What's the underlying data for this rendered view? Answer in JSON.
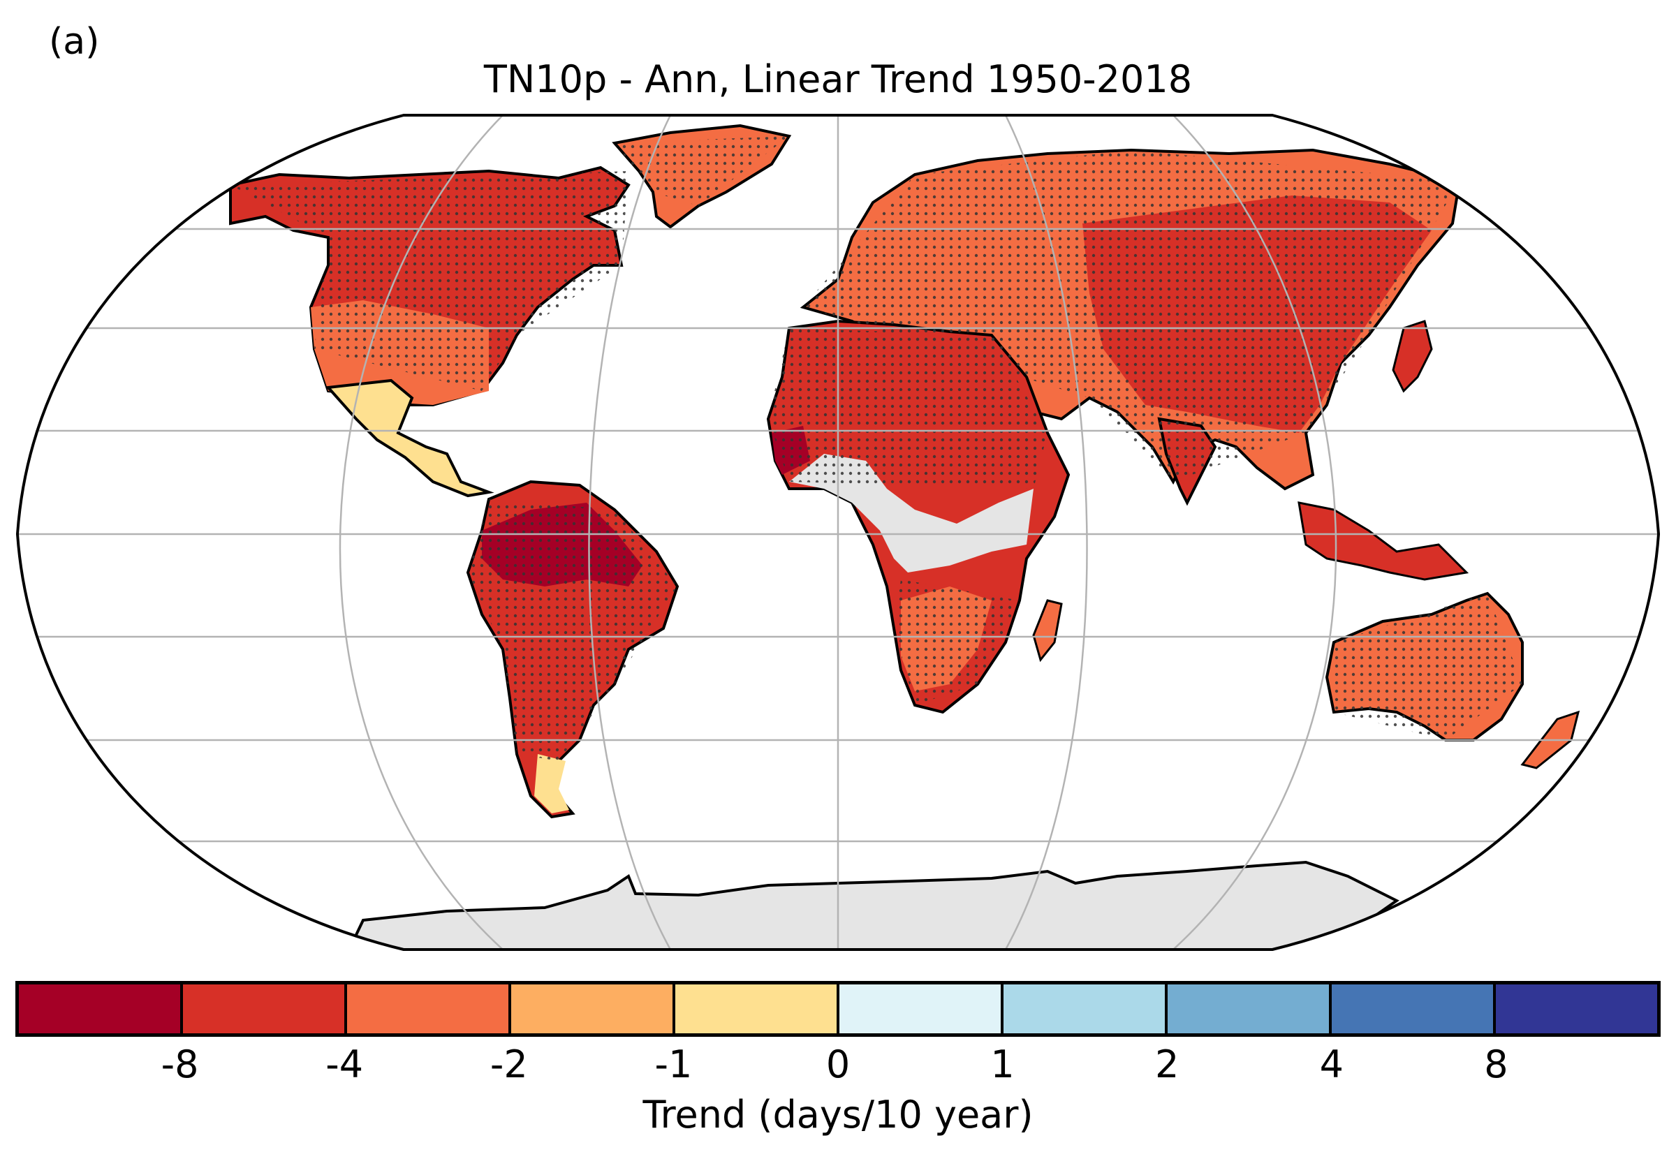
{
  "panel_label": "(a)",
  "title": "TN10p - Ann, Linear Trend 1950-2018",
  "projection": "Robinson",
  "colors": {
    "no_data": "#e5e5e5",
    "coastline": "#000000",
    "graticule": "#b3b3b3",
    "stipple": "#333333"
  },
  "colorbar": {
    "label": "Trend (days/10 year)",
    "tick_labels": [
      "-8",
      "-4",
      "-2",
      "-1",
      "0",
      "1",
      "2",
      "4",
      "8"
    ],
    "bins": [
      {
        "range": "< -8",
        "color": "#a50026"
      },
      {
        "range": "-8 to -4",
        "color": "#d73027"
      },
      {
        "range": "-4 to -2",
        "color": "#f46d43"
      },
      {
        "range": "-2 to -1",
        "color": "#fdae61"
      },
      {
        "range": "-1 to 0",
        "color": "#fee090"
      },
      {
        "range": "0 to 1",
        "color": "#e0f3f8"
      },
      {
        "range": "1 to 2",
        "color": "#abd9e9"
      },
      {
        "range": "2 to 4",
        "color": "#74add1"
      },
      {
        "range": "4 to 8",
        "color": "#4575b4"
      },
      {
        "range": "> 8",
        "color": "#313695"
      }
    ]
  },
  "regions": [
    {
      "name": "north-america",
      "trend_bin": "-8 to -4"
    },
    {
      "name": "western-us",
      "trend_bin": "-4 to -2"
    },
    {
      "name": "mexico",
      "trend_bin": "-1 to 0"
    },
    {
      "name": "greenland",
      "trend_bin": "-4 to -2"
    },
    {
      "name": "south-america",
      "trend_bin": "-8 to -4"
    },
    {
      "name": "amazon",
      "trend_bin": "< -8"
    },
    {
      "name": "patagonia",
      "trend_bin": "-1 to 0"
    },
    {
      "name": "europe",
      "trend_bin": "-4 to -2"
    },
    {
      "name": "russia",
      "trend_bin": "-8 to -4"
    },
    {
      "name": "asia",
      "trend_bin": "-8 to -4"
    },
    {
      "name": "north-africa",
      "trend_bin": "-8 to -4"
    },
    {
      "name": "west-africa-coast",
      "trend_bin": "< -8"
    },
    {
      "name": "central-africa",
      "trend_bin": "no data"
    },
    {
      "name": "southern-africa",
      "trend_bin": "-8 to -4"
    },
    {
      "name": "australia",
      "trend_bin": "-4 to -2"
    },
    {
      "name": "antarctica",
      "trend_bin": "no data"
    }
  ]
}
